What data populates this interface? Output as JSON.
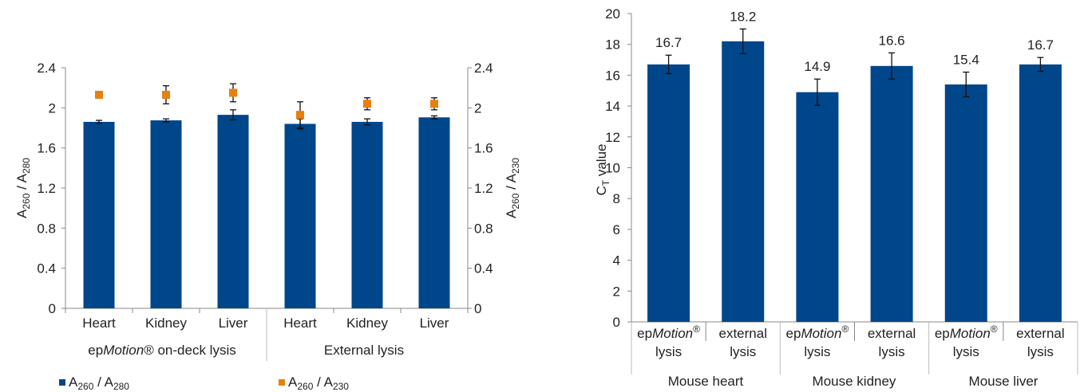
{
  "colors": {
    "bar": "#00468b",
    "marker": "#e8800d",
    "axis": "#888888",
    "grid": "#bbbbbb",
    "text": "#222222",
    "errorbar": "#111111"
  },
  "chart_data": [
    {
      "type": "bar",
      "categories": [
        "Heart",
        "Kidney",
        "Liver",
        "Heart",
        "Kidney",
        "Liver"
      ],
      "groups": [
        {
          "label_prefix": "ep",
          "label_italic": "Motion",
          "label_suffix": "® on-deck lysis",
          "categories": [
            0,
            1,
            2
          ]
        },
        {
          "label": "External lysis",
          "categories": [
            3,
            4,
            5
          ]
        }
      ],
      "series": [
        {
          "name": "A260/A280",
          "name_main": "A",
          "name_sub1": "260",
          "name_mid": " / A",
          "name_sub2": "280",
          "style": "bar",
          "axis": "left",
          "values": [
            1.86,
            1.875,
            1.93,
            1.84,
            1.86,
            1.905
          ],
          "errors": [
            0.015,
            0.015,
            0.05,
            0.05,
            0.03,
            0.015
          ]
        },
        {
          "name": "A260/A230",
          "name_main": "A",
          "name_sub1": "260",
          "name_mid": " / A",
          "name_sub2": "230",
          "style": "marker",
          "axis": "right",
          "values": [
            2.13,
            2.13,
            2.15,
            1.93,
            2.04,
            2.04
          ],
          "errors": [
            0.03,
            0.09,
            0.09,
            0.13,
            0.06,
            0.06
          ]
        }
      ],
      "ylim": [
        0,
        2.4
      ],
      "yticks": [
        "0",
        "0.4",
        "0.8",
        "1.2",
        "1.6",
        "2",
        "2.4"
      ],
      "ylabel": {
        "main": "A",
        "sub1": "260",
        "mid": " / A",
        "sub2": "280"
      },
      "y2label": {
        "main": "A",
        "sub1": "260",
        "mid": " / A",
        "sub2": "230"
      },
      "legend": "bottom-left",
      "grid": false
    },
    {
      "type": "bar",
      "categories": [
        {
          "prefix": "ep",
          "italic": "Motion",
          "sup": "®",
          "line2": "lysis"
        },
        {
          "line1": "external",
          "line2": "lysis"
        },
        {
          "prefix": "ep",
          "italic": "Motion",
          "sup": "®",
          "line2": "lysis"
        },
        {
          "line1": "external",
          "line2": "lysis"
        },
        {
          "prefix": "ep",
          "italic": "Motion",
          "sup": "®",
          "line2": "lysis"
        },
        {
          "line1": "external",
          "line2": "lysis"
        }
      ],
      "groups": [
        {
          "label": "Mouse heart",
          "categories": [
            0,
            1
          ]
        },
        {
          "label": "Mouse kidney",
          "categories": [
            2,
            3
          ]
        },
        {
          "label": "Mouse liver",
          "categories": [
            4,
            5
          ]
        }
      ],
      "values": [
        16.7,
        18.2,
        14.9,
        16.6,
        15.4,
        16.7
      ],
      "data_labels": [
        "16.7",
        "18.2",
        "14.9",
        "16.6",
        "15.4",
        "16.7"
      ],
      "errors": [
        0.6,
        0.8,
        0.85,
        0.85,
        0.8,
        0.45
      ],
      "ylim": [
        0,
        20
      ],
      "yticks": [
        "0",
        "2",
        "4",
        "6",
        "8",
        "10",
        "12",
        "14",
        "16",
        "18",
        "20"
      ],
      "ylabel": {
        "main": "C",
        "sub": "T",
        "rest": " value"
      },
      "grid": false
    }
  ]
}
